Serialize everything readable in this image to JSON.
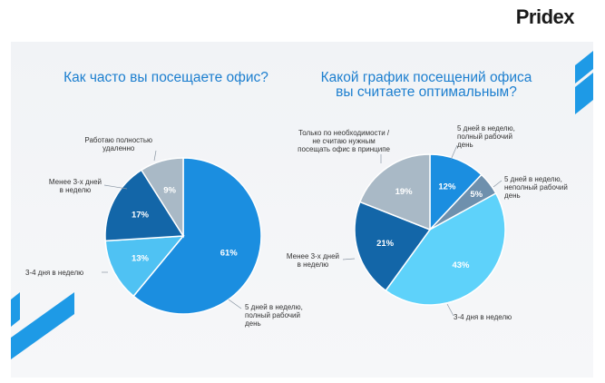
{
  "brand": {
    "logo_text": "Pridex"
  },
  "colors": {
    "title": "#1d7fcf",
    "accent_stripe": "#1e9ae6"
  },
  "chart_data": [
    {
      "type": "pie",
      "title": "Как часто вы посещаете офис?",
      "slices": [
        {
          "label": "5 дней в неделю,\nполный рабочий\nдень",
          "value": 61,
          "display": "61%",
          "color": "#1b8ee0"
        },
        {
          "label": "3-4 дня в неделю",
          "value": 13,
          "display": "13%",
          "color": "#4fc2f3"
        },
        {
          "label": "Менее 3-х дней\nв неделю",
          "value": 17,
          "display": "17%",
          "color": "#1366a8"
        },
        {
          "label": "Работаю полностью\nудаленно",
          "value": 9,
          "display": "9%",
          "color": "#a9b9c6"
        }
      ]
    },
    {
      "type": "pie",
      "title": "Какой график посещений офиса\nвы считаете оптимальным?",
      "slices": [
        {
          "label": "5 дней в неделю,\nполный рабочий\nдень",
          "value": 12,
          "display": "12%",
          "color": "#1b8ee0"
        },
        {
          "label": "5 дней в неделю,\nнеполный рабочий\nдень",
          "value": 5,
          "display": "5%",
          "color": "#6e90ad"
        },
        {
          "label": "3-4 дня в неделю",
          "value": 43,
          "display": "43%",
          "color": "#5ed2fa"
        },
        {
          "label": "Менее 3-х дней\nв неделю",
          "value": 21,
          "display": "21%",
          "color": "#1366a8"
        },
        {
          "label": "Только по необходимости /\nне считаю нужным\nпосещать офис в принципе",
          "value": 19,
          "display": "19%",
          "color": "#a9b9c6"
        }
      ]
    }
  ]
}
